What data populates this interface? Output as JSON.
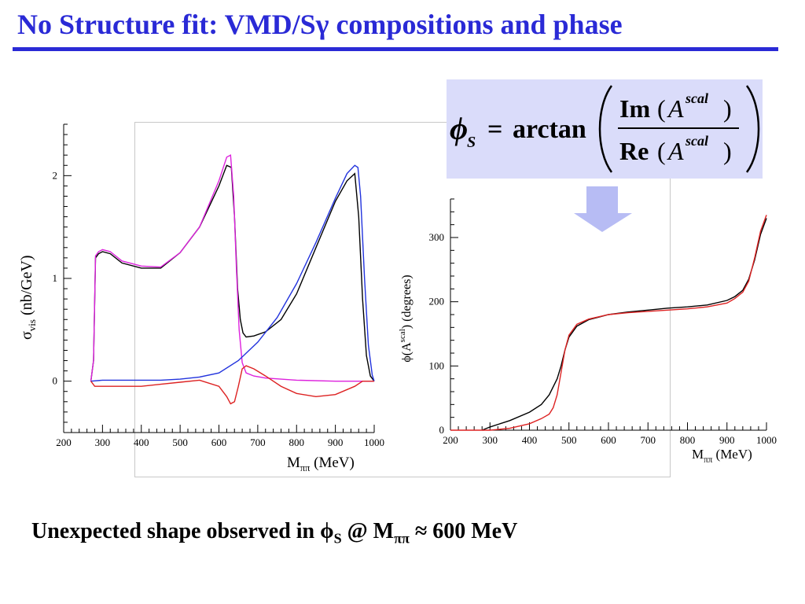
{
  "slide": {
    "title": "No Structure fit: VMD/Sγ compositions and phase",
    "caption": {
      "prefix": "Unexpected shape observed in ",
      "phi": "ϕ",
      "phi_sub": "S",
      "mid": " @ M",
      "m_sub": "ππ",
      "suffix": " ≈ 600 MeV"
    },
    "formula": {
      "phi": "ϕ",
      "phi_sub": "S",
      "equals": "=",
      "func": "arctan",
      "num_func": "Im",
      "den_func": "Re",
      "open_paren": "(",
      "close_paren": ")",
      "var": "A",
      "sup": "scal"
    },
    "colors": {
      "title": "#2a2ad6",
      "formula_bg": "#dadcfa",
      "arrow": "#b7bcf4"
    }
  },
  "chart_data": [
    {
      "type": "line",
      "xlim": [
        200,
        1000
      ],
      "ylim": [
        -0.5,
        2.5
      ],
      "xticks": [
        200,
        300,
        400,
        500,
        600,
        700,
        800,
        900,
        1000
      ],
      "yticks": [
        0,
        1,
        2
      ],
      "xlabel": "M",
      "xlabel_sub": "ππ",
      "xlabel_unit": " (MeV)",
      "ylabel": "σ",
      "ylabel_sub": "vis",
      "ylabel_unit": " (nb/GeV)",
      "series": [
        {
          "color": "#000000",
          "x": [
            270,
            277,
            282,
            290,
            300,
            320,
            350,
            400,
            450,
            500,
            550,
            600,
            620,
            632,
            640,
            648,
            655,
            662,
            670,
            690,
            720,
            760,
            800,
            850,
            900,
            930,
            950,
            960,
            970,
            980,
            990,
            1000
          ],
          "y": [
            0,
            0.2,
            1.2,
            1.24,
            1.26,
            1.24,
            1.15,
            1.1,
            1.1,
            1.25,
            1.5,
            1.9,
            2.1,
            2.08,
            1.6,
            0.9,
            0.6,
            0.47,
            0.43,
            0.44,
            0.48,
            0.6,
            0.85,
            1.3,
            1.75,
            1.95,
            2.02,
            1.6,
            0.8,
            0.25,
            0.05,
            0
          ]
        },
        {
          "color": "#dd22dd",
          "x": [
            270,
            277,
            282,
            290,
            300,
            320,
            350,
            400,
            450,
            500,
            550,
            600,
            620,
            630,
            638,
            645,
            652,
            660,
            670,
            690,
            720,
            800,
            900,
            1000
          ],
          "y": [
            0,
            0.2,
            1.22,
            1.26,
            1.28,
            1.26,
            1.17,
            1.12,
            1.11,
            1.25,
            1.5,
            1.95,
            2.18,
            2.2,
            1.8,
            1.1,
            0.5,
            0.18,
            0.08,
            0.05,
            0.03,
            0.01,
            0,
            0
          ]
        },
        {
          "color": "#2233dd",
          "x": [
            270,
            300,
            350,
            400,
            450,
            500,
            550,
            600,
            650,
            700,
            750,
            800,
            850,
            900,
            930,
            950,
            958,
            965,
            975,
            985,
            995,
            1000
          ],
          "y": [
            0,
            0.01,
            0.01,
            0.01,
            0.01,
            0.02,
            0.04,
            0.08,
            0.2,
            0.38,
            0.62,
            0.95,
            1.35,
            1.78,
            2.02,
            2.1,
            2.08,
            1.8,
            1.0,
            0.35,
            0.06,
            0
          ]
        },
        {
          "color": "#dd2222",
          "x": [
            270,
            280,
            300,
            350,
            400,
            450,
            500,
            550,
            600,
            620,
            630,
            640,
            650,
            660,
            670,
            690,
            720,
            760,
            800,
            850,
            900,
            950,
            970,
            990,
            1000
          ],
          "y": [
            0,
            -0.05,
            -0.05,
            -0.05,
            -0.05,
            -0.03,
            -0.01,
            0.01,
            -0.05,
            -0.15,
            -0.22,
            -0.2,
            -0.05,
            0.12,
            0.15,
            0.12,
            0.05,
            -0.05,
            -0.12,
            -0.15,
            -0.13,
            -0.05,
            0,
            0,
            0
          ]
        }
      ]
    },
    {
      "type": "line",
      "xlim": [
        200,
        1000
      ],
      "ylim": [
        0,
        360
      ],
      "xticks": [
        200,
        300,
        400,
        500,
        600,
        700,
        800,
        900,
        1000
      ],
      "yticks": [
        0,
        100,
        200,
        300
      ],
      "xlabel": "M",
      "xlabel_sub": "ππ",
      "xlabel_unit": " (MeV)",
      "ylabel_pre": "ϕ(A",
      "ylabel_sup": "scal",
      "ylabel_post": ") (degrees)",
      "series": [
        {
          "color": "#000000",
          "x": [
            280,
            300,
            350,
            400,
            430,
            450,
            470,
            480,
            490,
            500,
            520,
            550,
            600,
            650,
            700,
            750,
            800,
            850,
            900,
            920,
            940,
            955,
            970,
            985,
            1000
          ],
          "y": [
            0,
            5,
            15,
            28,
            40,
            55,
            80,
            100,
            125,
            145,
            162,
            172,
            180,
            184,
            187,
            190,
            192,
            195,
            202,
            208,
            218,
            235,
            265,
            305,
            330
          ]
        },
        {
          "color": "#dd2222",
          "x": [
            200,
            300,
            350,
            400,
            430,
            450,
            460,
            470,
            480,
            490,
            500,
            520,
            550,
            600,
            650,
            700,
            750,
            800,
            850,
            900,
            920,
            940,
            955,
            970,
            985,
            1000
          ],
          "y": [
            0,
            0,
            3,
            10,
            18,
            25,
            35,
            55,
            90,
            125,
            148,
            165,
            173,
            180,
            183,
            185,
            187,
            189,
            192,
            198,
            205,
            215,
            232,
            268,
            310,
            335
          ]
        }
      ]
    }
  ]
}
